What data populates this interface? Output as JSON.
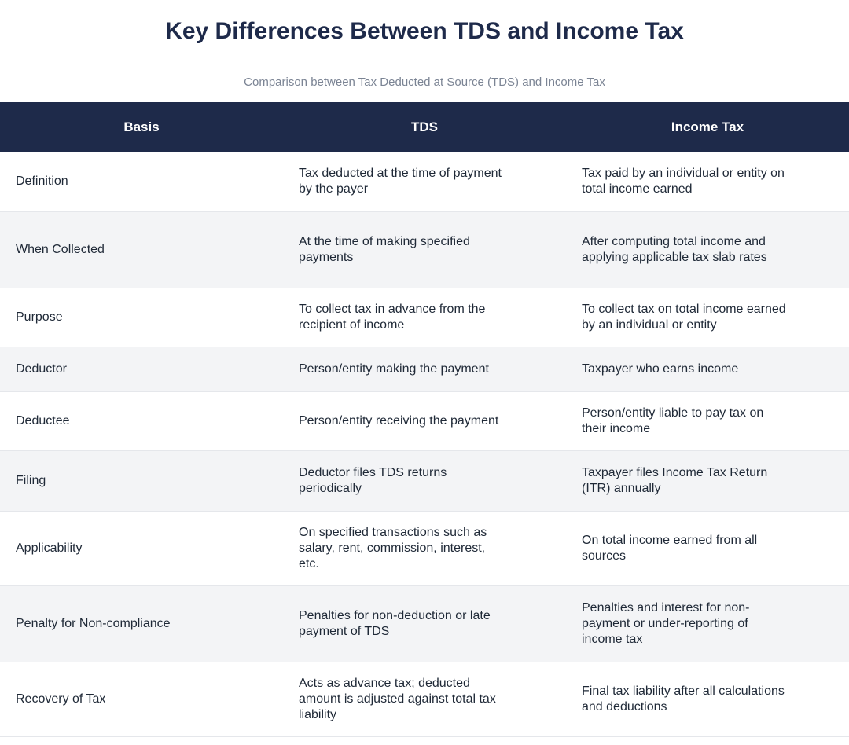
{
  "title": "Key Differences Between TDS and Income Tax",
  "subtitle": "Comparison between Tax Deducted at Source (TDS) and Income Tax",
  "table": {
    "headers": [
      "Basis",
      "TDS",
      "Income Tax"
    ],
    "rows": [
      [
        "Definition",
        "Tax deducted at the time of payment by the payer",
        "Tax paid by an individual or entity on total income earned"
      ],
      [
        "When Collected",
        "At the time of making specified payments",
        "After computing total income and applying applicable tax slab rates"
      ],
      [
        "Purpose",
        "To collect tax in advance from the recipient of income",
        "To collect tax on total income earned by an individual or entity"
      ],
      [
        "Deductor",
        "Person/entity making the payment",
        "Taxpayer who earns income"
      ],
      [
        "Deductee",
        "Person/entity receiving the payment",
        "Person/entity liable to pay tax on their income"
      ],
      [
        "Filing",
        "Deductor files TDS returns periodically",
        "Taxpayer files Income Tax Return (ITR) annually"
      ],
      [
        "Applicability",
        "On specified transactions such as salary, rent, commission, interest, etc.",
        "On total income earned from all sources"
      ],
      [
        "Penalty for Non-compliance",
        "Penalties for non-deduction or late payment of TDS",
        "Penalties and interest for non-payment or under-reporting of income tax"
      ],
      [
        "Recovery of Tax",
        "Acts as advance tax; deducted amount is adjusted against total tax liability",
        "Final tax liability after all calculations and deductions"
      ]
    ]
  }
}
